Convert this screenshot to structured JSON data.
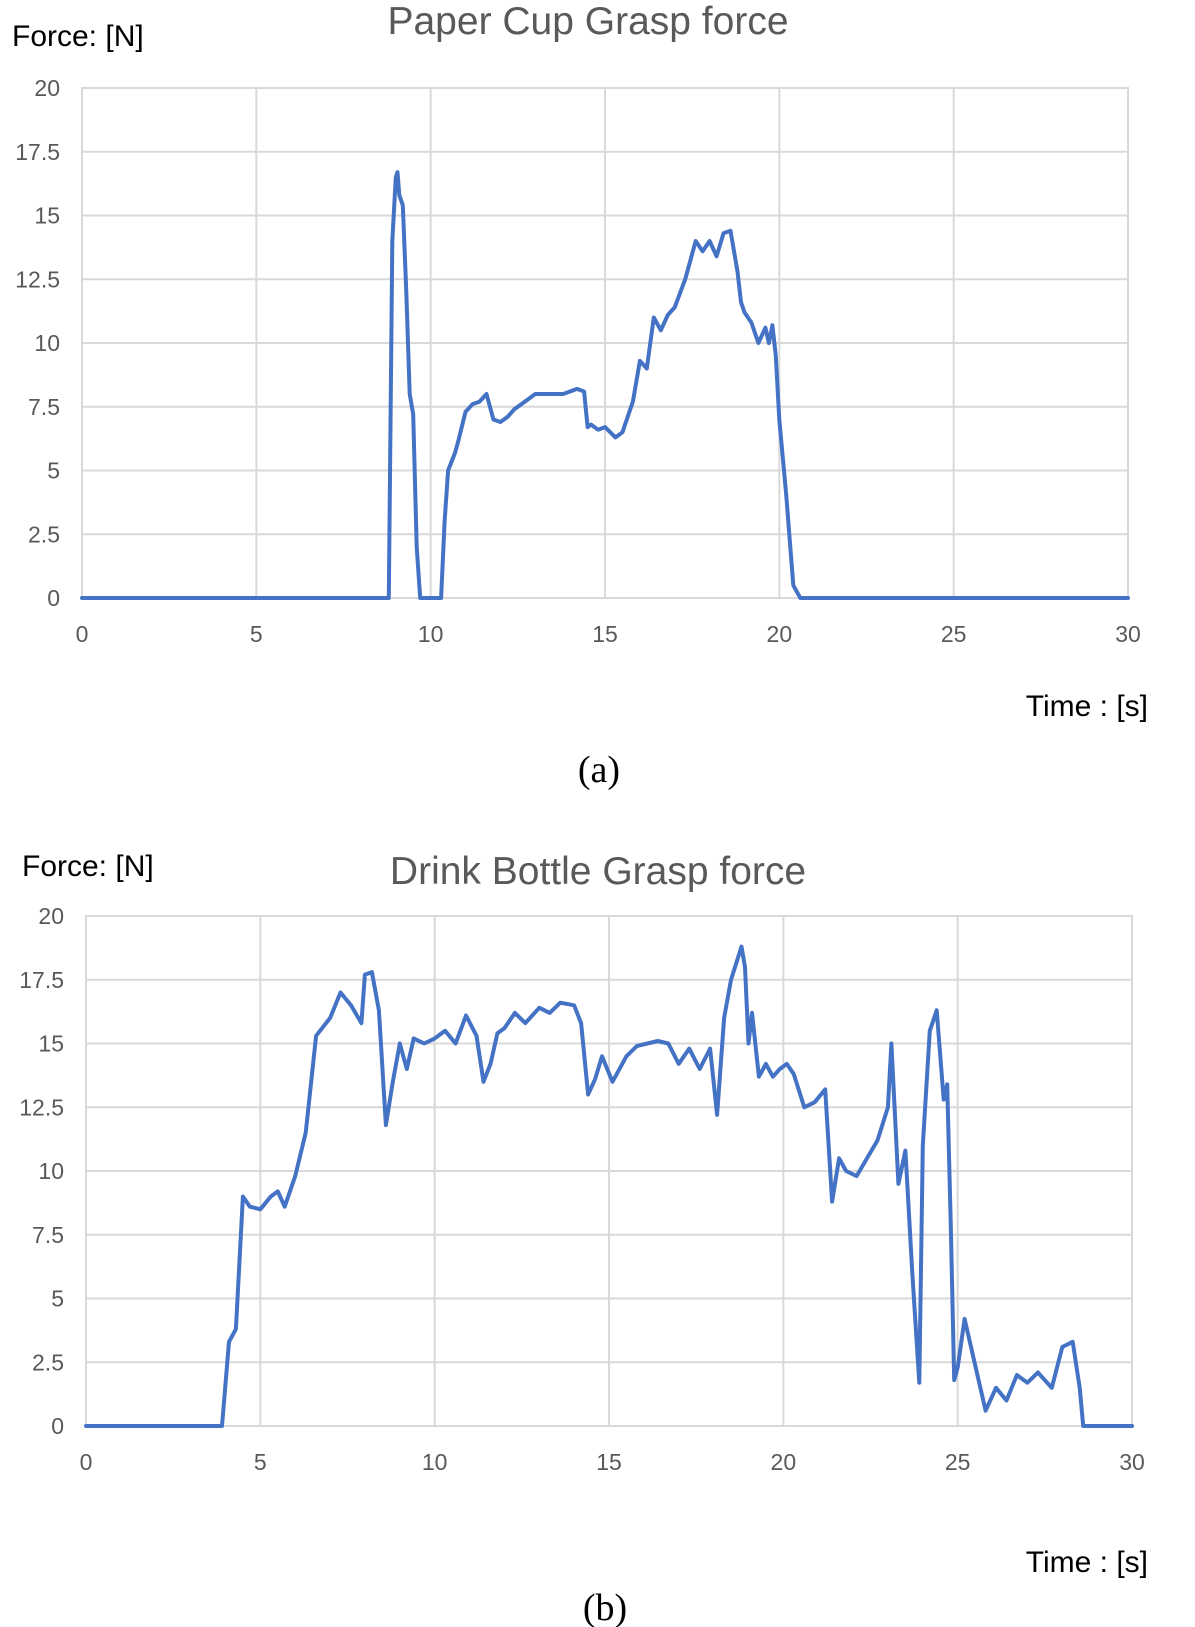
{
  "chart_data": [
    {
      "type": "line",
      "title": "Paper Cup Grasp force",
      "ylabel": "Force: [N]",
      "xlabel": "Time : [s]",
      "caption": "(a)",
      "xlim": [
        0,
        30
      ],
      "ylim": [
        0,
        20
      ],
      "x_ticks": [
        "0",
        "5",
        "10",
        "15",
        "20",
        "25",
        "30"
      ],
      "y_ticks": [
        "0",
        "2.5",
        "5",
        "7.5",
        "10",
        "12.5",
        "15",
        "17.5",
        "20"
      ],
      "grid": true,
      "color": "#4472C4",
      "x": [
        0,
        8.8,
        8.9,
        9.0,
        9.05,
        9.1,
        9.2,
        9.3,
        9.4,
        9.5,
        9.6,
        9.7,
        9.75,
        10.3,
        10.4,
        10.5,
        10.7,
        10.8,
        11.0,
        11.2,
        11.4,
        11.6,
        11.8,
        12.0,
        12.2,
        12.4,
        12.6,
        13.0,
        13.4,
        13.8,
        14.2,
        14.4,
        14.5,
        14.6,
        14.8,
        15.0,
        15.3,
        15.5,
        15.8,
        16.0,
        16.2,
        16.4,
        16.6,
        16.8,
        17.0,
        17.3,
        17.6,
        17.8,
        18.0,
        18.2,
        18.4,
        18.6,
        18.8,
        18.9,
        19.0,
        19.2,
        19.4,
        19.6,
        19.7,
        19.8,
        19.9,
        20.0,
        20.2,
        20.4,
        20.6,
        30
      ],
      "values": [
        0,
        0,
        14.0,
        16.5,
        16.7,
        15.8,
        15.4,
        12.0,
        8.0,
        7.2,
        2.0,
        0,
        0,
        0,
        3.0,
        5.0,
        5.7,
        6.2,
        7.3,
        7.6,
        7.7,
        8.0,
        7.0,
        6.9,
        7.1,
        7.4,
        7.6,
        8.0,
        8.0,
        8.0,
        8.2,
        8.1,
        6.7,
        6.8,
        6.6,
        6.7,
        6.3,
        6.5,
        7.7,
        9.3,
        9.0,
        11.0,
        10.5,
        11.1,
        11.4,
        12.5,
        14.0,
        13.6,
        14.0,
        13.4,
        14.3,
        14.4,
        12.8,
        11.6,
        11.2,
        10.8,
        10.0,
        10.6,
        10.0,
        10.7,
        9.5,
        7.0,
        4.0,
        0.5,
        0,
        0
      ]
    },
    {
      "type": "line",
      "title": "Drink Bottle Grasp force",
      "ylabel": "Force: [N]",
      "xlabel": "Time : [s]",
      "caption": "(b)",
      "xlim": [
        0,
        30
      ],
      "ylim": [
        0,
        20
      ],
      "x_ticks": [
        "0",
        "5",
        "10",
        "15",
        "20",
        "25",
        "30"
      ],
      "y_ticks": [
        "0",
        "2.5",
        "5",
        "7.5",
        "10",
        "12.5",
        "15",
        "17.5",
        "20"
      ],
      "grid": true,
      "color": "#4472C4",
      "x": [
        0,
        3.9,
        4.1,
        4.3,
        4.5,
        4.6,
        4.7,
        5.0,
        5.3,
        5.5,
        5.7,
        6.0,
        6.3,
        6.6,
        7.0,
        7.3,
        7.6,
        7.9,
        8.0,
        8.2,
        8.4,
        8.6,
        8.8,
        9.0,
        9.2,
        9.4,
        9.7,
        10.0,
        10.3,
        10.6,
        10.9,
        11.2,
        11.4,
        11.6,
        11.8,
        12.0,
        12.3,
        12.6,
        13.0,
        13.3,
        13.6,
        14.0,
        14.2,
        14.4,
        14.6,
        14.8,
        15.1,
        15.5,
        15.8,
        16.1,
        16.4,
        16.7,
        17.0,
        17.3,
        17.6,
        17.9,
        18.1,
        18.3,
        18.5,
        18.8,
        18.9,
        19.0,
        19.1,
        19.3,
        19.5,
        19.7,
        19.9,
        20.1,
        20.3,
        20.6,
        20.9,
        21.2,
        21.4,
        21.6,
        21.8,
        22.1,
        22.4,
        22.7,
        23.0,
        23.1,
        23.3,
        23.5,
        23.7,
        23.9,
        24.0,
        24.2,
        24.4,
        24.6,
        24.7,
        24.8,
        24.9,
        25.0,
        25.2,
        25.5,
        25.8,
        26.1,
        26.4,
        26.7,
        27.0,
        27.3,
        27.7,
        28.0,
        28.3,
        28.5,
        28.6,
        30
      ],
      "values": [
        0,
        0,
        3.3,
        3.8,
        9.0,
        8.8,
        8.6,
        8.5,
        9.0,
        9.2,
        8.6,
        9.8,
        11.5,
        15.3,
        16.0,
        17.0,
        16.5,
        15.8,
        17.7,
        17.8,
        16.3,
        11.8,
        13.5,
        15.0,
        14.0,
        15.2,
        15.0,
        15.2,
        15.5,
        15.0,
        16.1,
        15.3,
        13.5,
        14.2,
        15.4,
        15.6,
        16.2,
        15.8,
        16.4,
        16.2,
        16.6,
        16.5,
        15.8,
        13.0,
        13.6,
        14.5,
        13.5,
        14.5,
        14.9,
        15.0,
        15.1,
        15.0,
        14.2,
        14.8,
        14.0,
        14.8,
        12.2,
        16.0,
        17.5,
        18.8,
        18.0,
        15.0,
        16.2,
        13.7,
        14.2,
        13.7,
        14.0,
        14.2,
        13.8,
        12.5,
        12.7,
        13.2,
        8.8,
        10.5,
        10.0,
        9.8,
        10.5,
        11.2,
        12.5,
        15.0,
        9.5,
        10.8,
        6.0,
        1.7,
        11.0,
        15.5,
        16.3,
        12.8,
        13.4,
        8.0,
        1.8,
        2.3,
        4.2,
        2.4,
        0.6,
        1.5,
        1.0,
        2.0,
        1.7,
        2.1,
        1.5,
        3.1,
        3.3,
        1.5,
        0,
        0
      ]
    }
  ]
}
